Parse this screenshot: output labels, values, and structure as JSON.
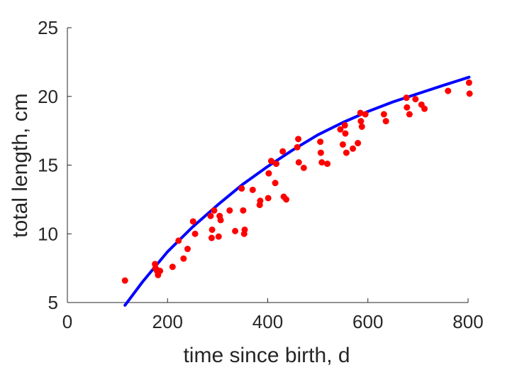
{
  "chart_data": {
    "type": "scatter",
    "title": "",
    "xlabel": "time since birth, d",
    "ylabel": "total length, cm",
    "xlim": [
      0,
      800
    ],
    "ylim": [
      5,
      25
    ],
    "xticks": [
      "0",
      "200",
      "400",
      "600",
      "800"
    ],
    "yticks": [
      "5",
      "10",
      "15",
      "20",
      "25"
    ],
    "grid": false,
    "legend": "none",
    "colors": {
      "points": "#ff0000",
      "fit": "#0000ff",
      "axis": "#262626"
    },
    "series": [
      {
        "kind": "scatter",
        "points": [
          [
            115,
            6.6
          ],
          [
            175,
            7.8
          ],
          [
            176,
            7.5
          ],
          [
            178,
            7.4
          ],
          [
            179,
            7.3
          ],
          [
            181,
            7.0
          ],
          [
            185,
            7.3
          ],
          [
            210,
            7.6
          ],
          [
            222,
            9.5
          ],
          [
            232,
            8.2
          ],
          [
            240,
            8.9
          ],
          [
            251,
            10.9
          ],
          [
            255,
            10.0
          ],
          [
            286,
            11.3
          ],
          [
            288,
            9.7
          ],
          [
            289,
            10.3
          ],
          [
            293,
            11.7
          ],
          [
            302,
            9.8
          ],
          [
            304,
            11.3
          ],
          [
            306,
            11.0
          ],
          [
            324,
            11.7
          ],
          [
            335,
            10.2
          ],
          [
            348,
            13.3
          ],
          [
            351,
            11.7
          ],
          [
            353,
            10.0
          ],
          [
            354,
            10.3
          ],
          [
            370,
            13.2
          ],
          [
            384,
            12.1
          ],
          [
            385,
            12.4
          ],
          [
            401,
            12.6
          ],
          [
            402,
            14.4
          ],
          [
            407,
            15.3
          ],
          [
            415,
            13.7
          ],
          [
            417,
            15.1
          ],
          [
            430,
            16.0
          ],
          [
            432,
            12.7
          ],
          [
            437,
            12.5
          ],
          [
            459,
            16.3
          ],
          [
            461,
            16.9
          ],
          [
            462,
            15.2
          ],
          [
            472,
            14.8
          ],
          [
            505,
            16.7
          ],
          [
            506,
            15.9
          ],
          [
            508,
            15.2
          ],
          [
            519,
            15.1
          ],
          [
            545,
            17.6
          ],
          [
            550,
            16.5
          ],
          [
            554,
            17.9
          ],
          [
            555,
            17.3
          ],
          [
            557,
            15.9
          ],
          [
            570,
            16.2
          ],
          [
            580,
            16.6
          ],
          [
            585,
            18.8
          ],
          [
            586,
            18.2
          ],
          [
            588,
            17.8
          ],
          [
            595,
            18.7
          ],
          [
            632,
            18.7
          ],
          [
            636,
            18.2
          ],
          [
            677,
            19.9
          ],
          [
            678,
            19.2
          ],
          [
            683,
            18.7
          ],
          [
            695,
            19.8
          ],
          [
            707,
            19.4
          ],
          [
            713,
            19.1
          ],
          [
            760,
            20.4
          ],
          [
            802,
            21.0
          ],
          [
            803,
            20.2
          ]
        ]
      },
      {
        "kind": "line",
        "points": [
          [
            115,
            4.8
          ],
          [
            150,
            6.5
          ],
          [
            200,
            8.7
          ],
          [
            250,
            10.5
          ],
          [
            300,
            12.1
          ],
          [
            350,
            13.6
          ],
          [
            400,
            14.9
          ],
          [
            450,
            16.1
          ],
          [
            500,
            17.2
          ],
          [
            550,
            18.1
          ],
          [
            600,
            18.9
          ],
          [
            650,
            19.6
          ],
          [
            700,
            20.2
          ],
          [
            750,
            20.8
          ],
          [
            802,
            21.4
          ]
        ]
      }
    ]
  }
}
